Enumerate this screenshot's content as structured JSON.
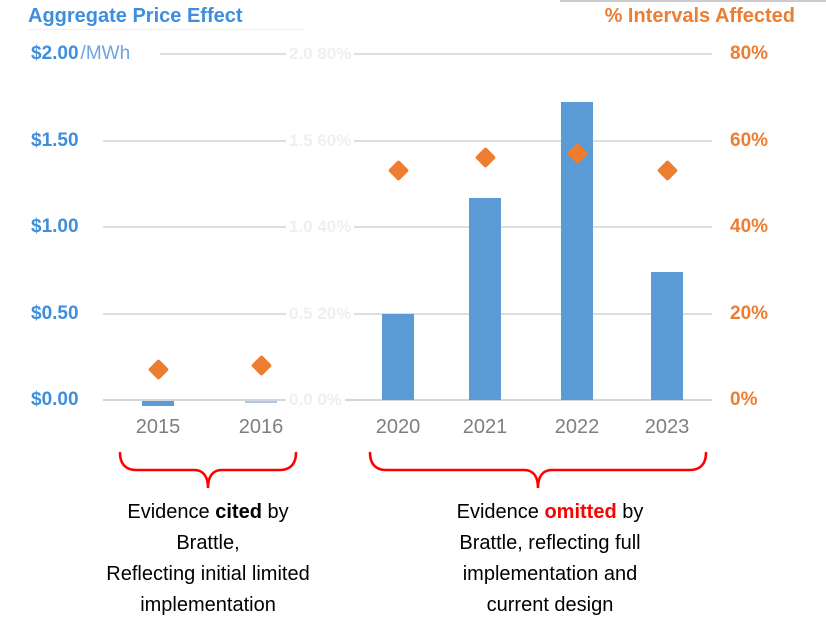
{
  "titles": {
    "left": "Aggregate Price Effect",
    "right": "% Intervals Affected"
  },
  "colors": {
    "title_blue": "#3E8EDE",
    "unit_blue": "#6FA3DC",
    "bar_blue": "#5B9BD5",
    "bar_light_blue": "#A9C7E7",
    "orange": "#ED7D31",
    "year_gray": "#7f7f7f",
    "gridline_gray": "#dedede",
    "brace_red": "#FF0000",
    "ghost_gray": "#efefef"
  },
  "chart_data": {
    "type": "bar",
    "subtype": "bar-and-scatter-combo",
    "categories": [
      "2015",
      "2016",
      "2020",
      "2021",
      "2022",
      "2023"
    ],
    "series": [
      {
        "name": "Aggregate Price Effect",
        "type": "bar",
        "axis": "left",
        "unit": "$/MWh",
        "values": [
          -0.03,
          -0.01,
          0.5,
          1.17,
          1.72,
          0.74
        ],
        "bar_colors": [
          "#5B9BD5",
          "#A9C7E7",
          "#5B9BD5",
          "#5B9BD5",
          "#5B9BD5",
          "#5B9BD5"
        ]
      },
      {
        "name": "% Intervals Affected",
        "type": "scatter",
        "marker": "diamond",
        "axis": "right",
        "unit": "%",
        "values": [
          7,
          8,
          53,
          56,
          57,
          53
        ]
      }
    ],
    "left_axis": {
      "title": "Aggregate Price Effect",
      "ticks": [
        "$2.00",
        "$1.50",
        "$1.00",
        "$0.50",
        "$0.00"
      ],
      "tick_values": [
        2.0,
        1.5,
        1.0,
        0.5,
        0.0
      ],
      "unit_label": "/MWh",
      "range": [
        0,
        2
      ]
    },
    "right_axis": {
      "title": "% Intervals Affected",
      "ticks": [
        "80%",
        "60%",
        "40%",
        "20%",
        "0%"
      ],
      "tick_values": [
        80,
        60,
        40,
        20,
        0
      ],
      "range": [
        0,
        80
      ]
    },
    "ghost_labels": [
      "2.0 80%",
      "1.5 60%",
      "1.0 40%",
      "0.5 20%",
      "0.0 0%"
    ],
    "grid": "horizontal",
    "legend": "none"
  },
  "annotations": {
    "left_note": {
      "l1a": "Evidence ",
      "l1b": "cited",
      "l1c": " by",
      "l2": "Brattle,",
      "l3": "Reflecting initial limited",
      "l4": "implementation"
    },
    "right_note": {
      "l1a": "Evidence ",
      "l1b": "omitted",
      "l1c": " by",
      "l2": "Brattle, reflecting full",
      "l3": "implementation and",
      "l4": "current design"
    }
  }
}
